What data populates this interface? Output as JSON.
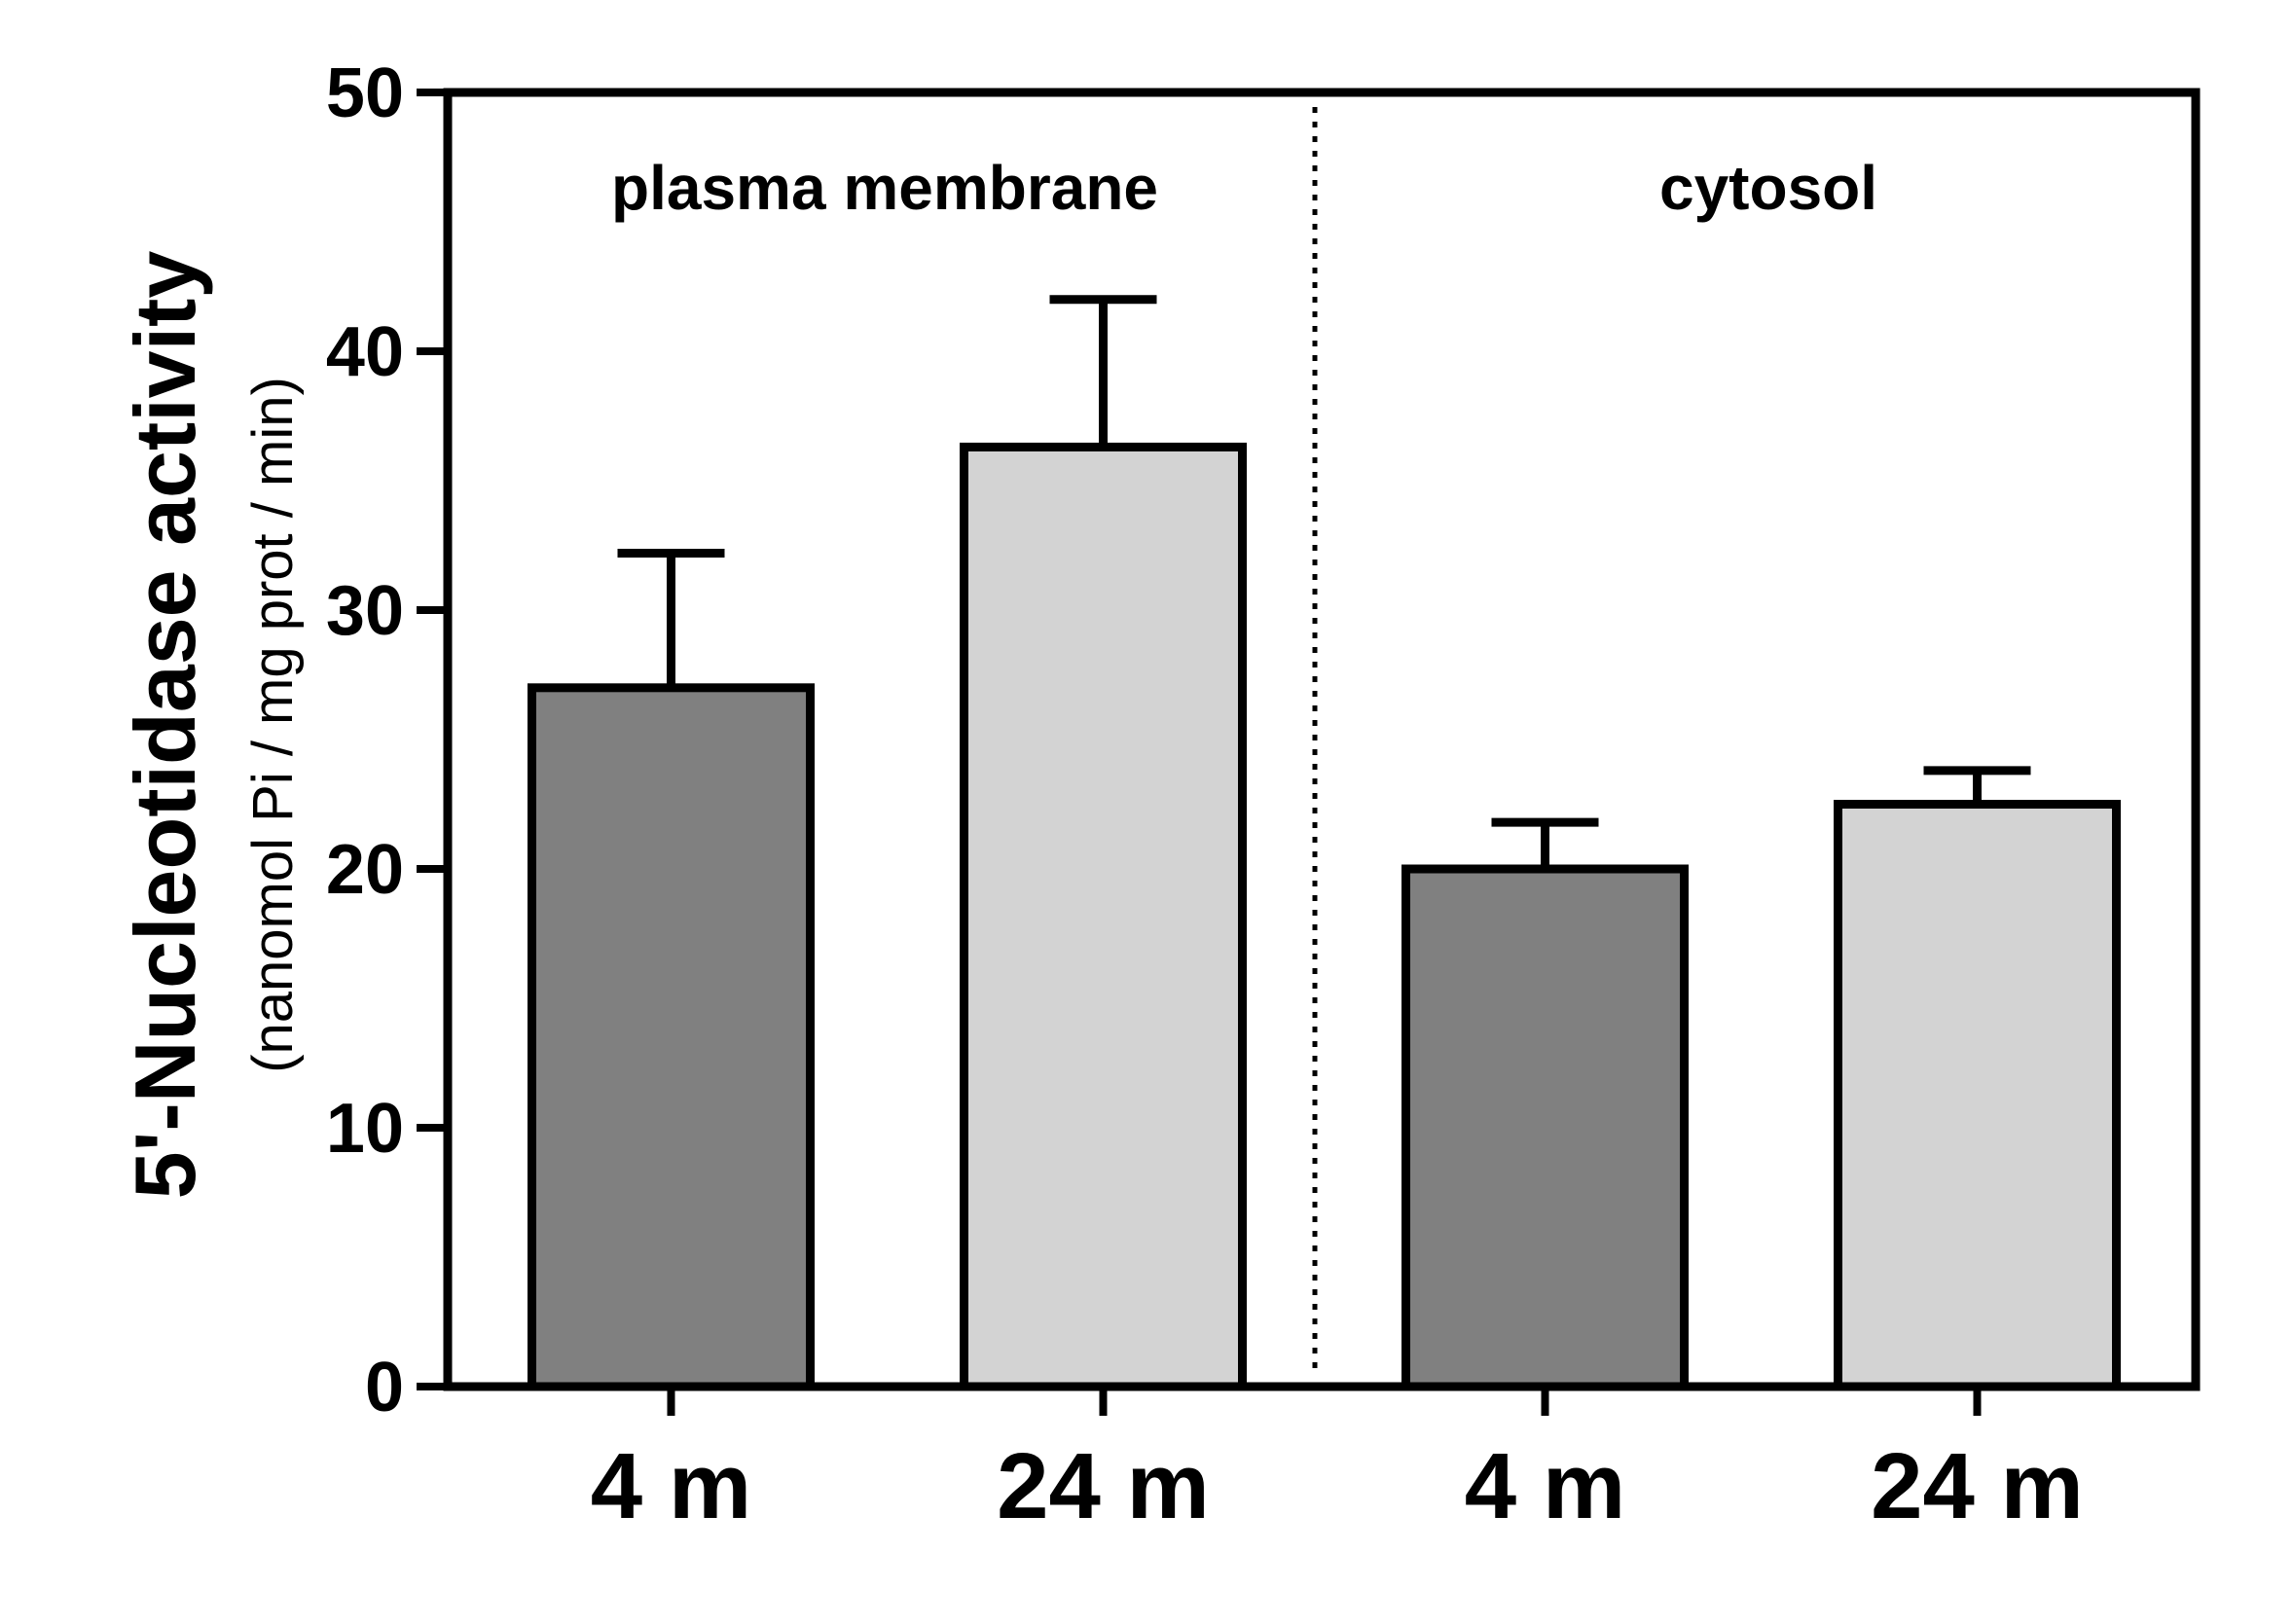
{
  "chart_data": {
    "type": "bar",
    "title": "",
    "ylabel": "5'-Nucleotidase activity",
    "ylabel_units": "(nanomol Pi / mg prot / min)",
    "xlabel": "",
    "ylim": [
      0,
      50
    ],
    "yticks": [
      0,
      10,
      20,
      30,
      40,
      50
    ],
    "grid": false,
    "panels": [
      {
        "label": "plasma membrane",
        "bars": [
          {
            "category": "4 m",
            "value": 27,
            "error": 5.2,
            "color": "#808080"
          },
          {
            "category": "24 m",
            "value": 36.3,
            "error": 5.7,
            "color": "#d3d3d3"
          }
        ]
      },
      {
        "label": "cytosol",
        "bars": [
          {
            "category": "4 m",
            "value": 20,
            "error": 1.8,
            "color": "#808080"
          },
          {
            "category": "24 m",
            "value": 22.5,
            "error": 1.3,
            "color": "#d3d3d3"
          }
        ]
      }
    ],
    "separator": "dotted"
  }
}
